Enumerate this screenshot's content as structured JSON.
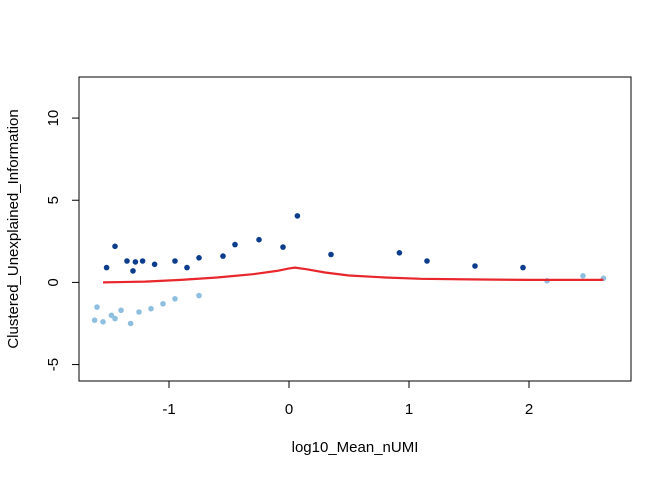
{
  "chart_data": {
    "type": "scatter",
    "title": "",
    "xlabel": "log10_Mean_nUMI",
    "ylabel": "Clustered_Unexplained_Information",
    "xlim": [
      -1.75,
      2.85
    ],
    "ylim": [
      -6.0,
      12.5
    ],
    "x_ticks": [
      -1,
      0,
      1,
      2
    ],
    "y_ticks": [
      -5,
      0,
      5,
      10
    ],
    "grid": false,
    "legend": "none",
    "colors": {
      "high_points": "#0b3d8c",
      "low_points": "#8fbfe0",
      "fit_line": "#e8262b",
      "frame": "#000000"
    },
    "series": [
      {
        "role": "upper scattered points (dark blue)",
        "points": [
          [
            -1.45,
            2.2
          ],
          [
            -1.35,
            1.3
          ],
          [
            -1.28,
            1.25
          ],
          [
            -1.22,
            1.3
          ],
          [
            -1.12,
            1.1
          ],
          [
            -0.95,
            1.3
          ],
          [
            -0.75,
            1.5
          ],
          [
            -0.55,
            1.6
          ],
          [
            -0.45,
            2.3
          ],
          [
            -0.25,
            2.6
          ],
          [
            0.07,
            4.05
          ],
          [
            -0.05,
            2.15
          ],
          [
            0.92,
            1.8
          ],
          [
            1.15,
            1.3
          ],
          [
            1.55,
            1.0
          ],
          [
            1.95,
            0.9
          ],
          [
            -1.52,
            0.9
          ],
          [
            -1.3,
            0.7
          ],
          [
            -0.85,
            0.9
          ],
          [
            0.35,
            1.7
          ]
        ]
      },
      {
        "role": "lower scattered points (light blue)",
        "points": [
          [
            -1.62,
            -2.3
          ],
          [
            -1.55,
            -2.4
          ],
          [
            -1.48,
            -2.0
          ],
          [
            -1.45,
            -2.2
          ],
          [
            -1.32,
            -2.5
          ],
          [
            -1.25,
            -1.8
          ],
          [
            -1.15,
            -1.6
          ],
          [
            -1.05,
            -1.3
          ],
          [
            -0.95,
            -1.0
          ],
          [
            -0.75,
            -0.8
          ],
          [
            2.15,
            0.1
          ],
          [
            2.45,
            0.4
          ],
          [
            2.62,
            0.25
          ],
          [
            -1.6,
            -1.5
          ],
          [
            -1.4,
            -1.7
          ]
        ]
      }
    ],
    "fit_line": {
      "x": [
        -1.55,
        -1.2,
        -0.9,
        -0.6,
        -0.3,
        -0.1,
        0.0,
        0.05,
        0.15,
        0.3,
        0.5,
        0.8,
        1.1,
        1.5,
        2.0,
        2.4,
        2.62
      ],
      "y": [
        0.0,
        0.05,
        0.15,
        0.3,
        0.5,
        0.7,
        0.85,
        0.9,
        0.8,
        0.6,
        0.42,
        0.3,
        0.22,
        0.18,
        0.15,
        0.15,
        0.15
      ]
    }
  }
}
